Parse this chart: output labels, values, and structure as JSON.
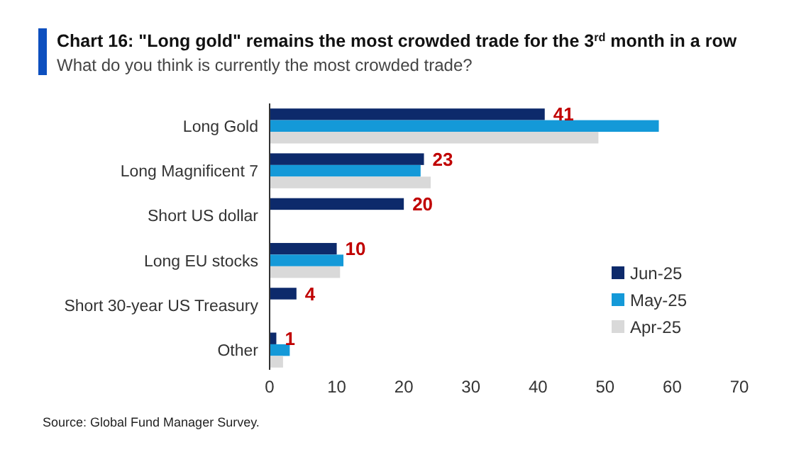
{
  "chart_data": {
    "type": "bar",
    "orientation": "horizontal",
    "title": "Chart 16: \"Long gold\" remains the most crowded trade for the 3$^{rd}$ month in a row",
    "subtitle": "What do you think is currently the most crowded trade?",
    "categories": [
      "Long Gold",
      "Long Magnificent 7",
      "Short US dollar",
      "Long EU stocks",
      "Short 30-year US Treasury",
      "Other"
    ],
    "series": [
      {
        "name": "Jun-25",
        "color": "#0d2a6b",
        "values": [
          41,
          23,
          20,
          10,
          4,
          1
        ],
        "value_labels": [
          "41",
          "23",
          "20",
          "10",
          "4",
          "1"
        ]
      },
      {
        "name": "May-25",
        "color": "#1499d8",
        "values": [
          58,
          22.5,
          null,
          11,
          null,
          3
        ]
      },
      {
        "name": "Apr-25",
        "color": "#d9d9d9",
        "values": [
          49,
          24,
          null,
          10.5,
          null,
          2
        ]
      }
    ],
    "xlim": [
      0,
      70
    ],
    "xticks": [
      0,
      10,
      20,
      30,
      40,
      50,
      60,
      70
    ],
    "legend": "bottom right",
    "grid": false,
    "annotations": [
      "Source: Global Fund Manager Survey."
    ]
  }
}
